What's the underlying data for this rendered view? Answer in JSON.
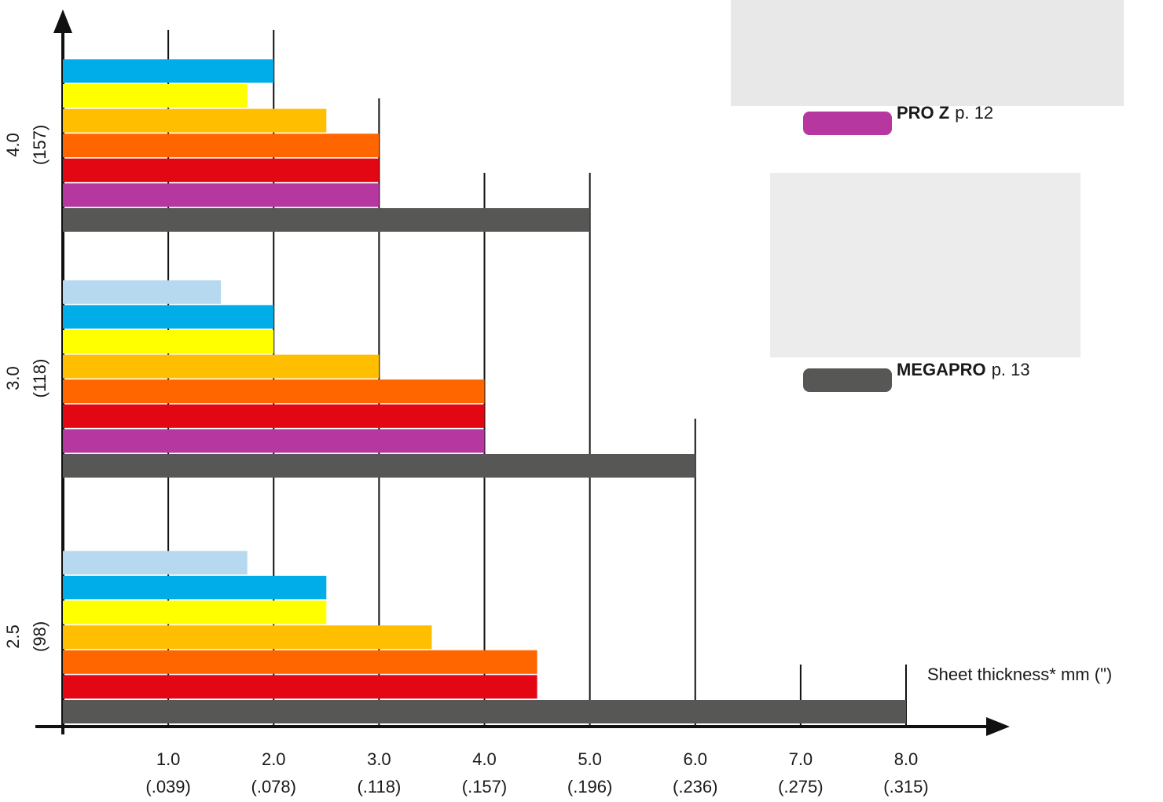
{
  "chart_data": {
    "type": "bar",
    "categories": [
      "4.0",
      "3.0",
      "2.5"
    ],
    "category_sublabels": [
      "(157)",
      "(118)",
      "(98)"
    ],
    "series": [
      {
        "color": "#b6d9ef",
        "values": [
          null,
          1.5,
          1.75
        ]
      },
      {
        "color": "#00ade9",
        "values": [
          2.0,
          2.0,
          2.5
        ]
      },
      {
        "color": "#ffff00",
        "values": [
          1.75,
          2.0,
          2.5
        ]
      },
      {
        "color": "#ffbe00",
        "values": [
          2.5,
          3.0,
          3.5
        ]
      },
      {
        "color": "#ff6600",
        "values": [
          3.0,
          4.0,
          4.5
        ]
      },
      {
        "color": "#e30613",
        "values": [
          3.0,
          4.0,
          4.5
        ]
      },
      {
        "name": "PRO Z",
        "page": "p. 12",
        "color": "#b5379f",
        "values": [
          3.0,
          4.0,
          null
        ]
      },
      {
        "name": "MEGAPRO",
        "page": "p. 13",
        "color": "#575756",
        "values": [
          5.0,
          6.0,
          8.0
        ]
      }
    ],
    "xlim": [
      0,
      8
    ],
    "xticks": [
      {
        "value": 1,
        "label": "1.0"
      },
      {
        "value": 2,
        "label": "2.0"
      },
      {
        "value": 3,
        "label": "3.0"
      },
      {
        "value": 4,
        "label": "4.0"
      },
      {
        "value": 5,
        "label": "5.0"
      },
      {
        "value": 6,
        "label": "6.0"
      },
      {
        "value": 7,
        "label": "7.0"
      },
      {
        "value": 8,
        "label": "8.0"
      }
    ],
    "xtick_sublabels": [
      "(.039)",
      "(.078)",
      "(.118)",
      "(.157)",
      "(.196)",
      "(.236)",
      "(.275)",
      "(.315)"
    ],
    "xlabel": "Sheet thickness* mm (\")",
    "grid": true
  }
}
